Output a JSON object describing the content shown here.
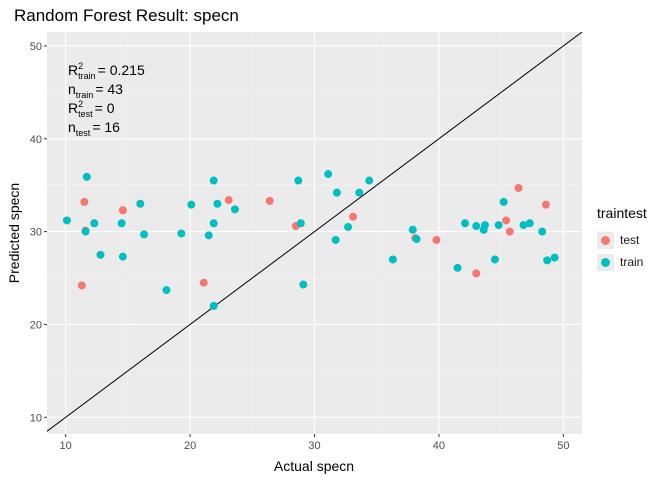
{
  "chart_data": {
    "type": "scatter",
    "title": "Random Forest Result: specn",
    "xlabel": "Actual specn",
    "ylabel": "Predicted specn",
    "xlim": [
      8.5,
      51.5
    ],
    "ylim": [
      8.2,
      51.5
    ],
    "x_ticks": [
      10,
      20,
      30,
      40,
      50
    ],
    "y_ticks": [
      10,
      20,
      30,
      40,
      50
    ],
    "grid": true,
    "background": "#ebebeb",
    "reference_line": "y = x",
    "annotation_lines": [
      {
        "base": "R",
        "sup": "2",
        "sub": "train",
        "value": "= 0.215"
      },
      {
        "base": "n",
        "sup": "",
        "sub": "train",
        "value": "= 43"
      },
      {
        "base": "R",
        "sup": "2",
        "sub": "test",
        "value": "= 0"
      },
      {
        "base": "n",
        "sup": "",
        "sub": "test",
        "value": "= 16"
      }
    ],
    "legend": {
      "title": "traintest",
      "position": "right"
    },
    "series": [
      {
        "name": "test",
        "color": "#F8766D",
        "points": [
          [
            11.3,
            24.2
          ],
          [
            11.5,
            33.2
          ],
          [
            11.6,
            30.1
          ],
          [
            14.6,
            32.3
          ],
          [
            21.1,
            24.5
          ],
          [
            23.1,
            33.4
          ],
          [
            26.4,
            33.3
          ],
          [
            28.5,
            30.6
          ],
          [
            33.1,
            31.6
          ],
          [
            38.1,
            29.3
          ],
          [
            39.8,
            29.1
          ],
          [
            43.0,
            25.5
          ],
          [
            45.4,
            31.2
          ],
          [
            45.7,
            30.0
          ],
          [
            46.4,
            34.7
          ],
          [
            48.6,
            32.9
          ]
        ]
      },
      {
        "name": "train",
        "color": "#00BFC4",
        "points": [
          [
            10.1,
            31.2
          ],
          [
            11.7,
            35.9
          ],
          [
            12.3,
            30.9
          ],
          [
            12.8,
            27.5
          ],
          [
            14.5,
            30.9
          ],
          [
            14.6,
            27.3
          ],
          [
            16.0,
            33.0
          ],
          [
            16.3,
            29.7
          ],
          [
            18.1,
            23.7
          ],
          [
            19.3,
            29.8
          ],
          [
            20.1,
            32.9
          ],
          [
            21.5,
            29.6
          ],
          [
            21.9,
            35.5
          ],
          [
            21.9,
            30.9
          ],
          [
            21.9,
            22.0
          ],
          [
            22.2,
            33.0
          ],
          [
            23.6,
            32.4
          ],
          [
            28.7,
            35.5
          ],
          [
            28.9,
            30.9
          ],
          [
            29.1,
            24.3
          ],
          [
            31.1,
            36.2
          ],
          [
            31.7,
            29.1
          ],
          [
            31.8,
            34.2
          ],
          [
            32.7,
            30.5
          ],
          [
            33.6,
            34.2
          ],
          [
            34.4,
            35.5
          ],
          [
            36.3,
            27.0
          ],
          [
            37.9,
            30.2
          ],
          [
            38.2,
            29.2
          ],
          [
            41.5,
            26.1
          ],
          [
            42.1,
            30.9
          ],
          [
            43.0,
            30.6
          ],
          [
            43.6,
            30.2
          ],
          [
            43.7,
            30.7
          ],
          [
            44.5,
            27.0
          ],
          [
            44.8,
            30.7
          ],
          [
            45.2,
            33.2
          ],
          [
            46.8,
            30.7
          ],
          [
            47.3,
            30.9
          ],
          [
            48.3,
            30.0
          ],
          [
            48.7,
            26.9
          ],
          [
            49.3,
            27.2
          ],
          [
            11.6,
            30.0
          ]
        ]
      }
    ]
  }
}
